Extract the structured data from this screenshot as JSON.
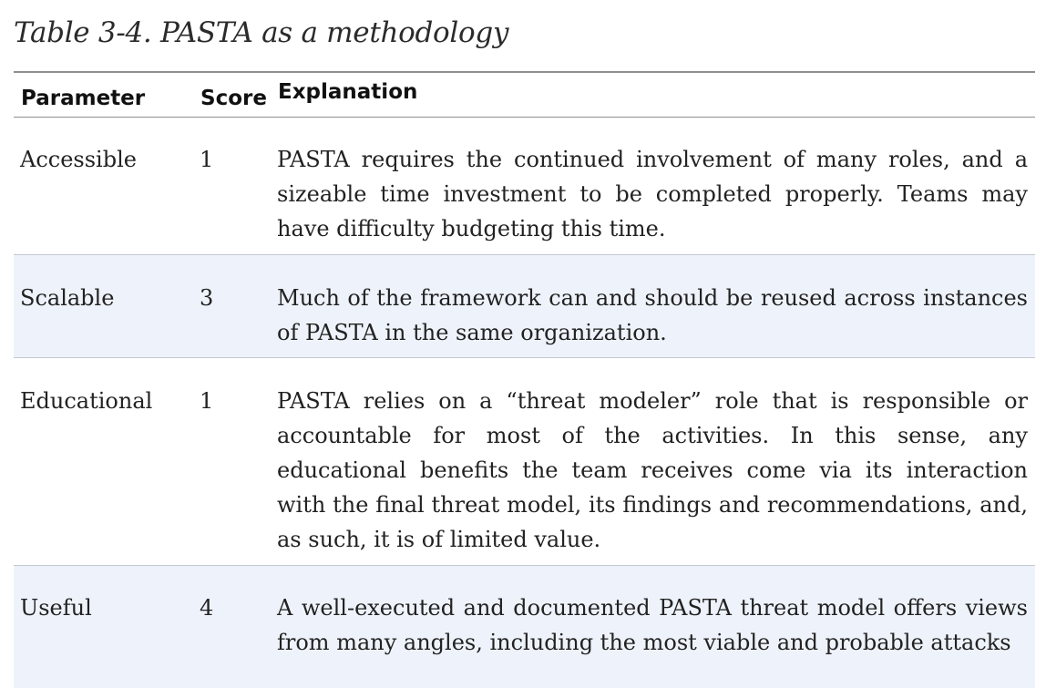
{
  "caption": "Table 3-4. PASTA as a methodology",
  "table": {
    "headers": {
      "parameter": "Parameter",
      "score": "Score",
      "explanation": "Explanation"
    },
    "rows": [
      {
        "parameter": "Accessible",
        "score": "1",
        "explanation": "PASTA requires the continued involvement of many roles, and a sizeable time investment to be completed properly. Teams may have difficulty budgeting this time."
      },
      {
        "parameter": "Scalable",
        "score": "3",
        "explanation": "Much of the framework can and should be reused across instances of PASTA in the same organization."
      },
      {
        "parameter": "Educational",
        "score": "1",
        "explanation": "PASTA relies on a “threat modeler” role that is responsible or accountable for most of the activities. In this sense, any educational benefits the team receives come via its interaction with the final threat model, its findings and recommendations, and, as such, it is of limited value."
      },
      {
        "parameter": "Useful",
        "score": "4",
        "explanation": "A well-executed and documented PASTA threat model offers views from many angles, including the most viable and probable attacks"
      }
    ]
  }
}
